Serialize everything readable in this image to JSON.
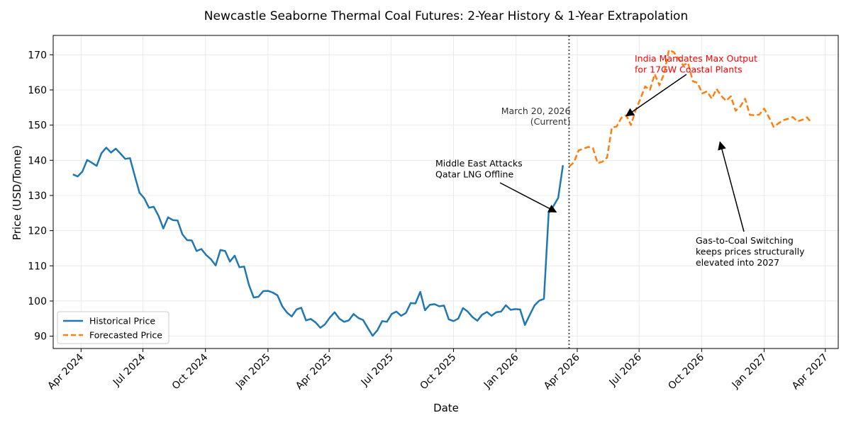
{
  "chart_data": {
    "type": "line",
    "title": "Newcastle Seaborne Thermal Coal Futures: 2-Year History & 1-Year Extrapolation",
    "xlabel": "Date",
    "ylabel": "Price (USD/Tonne)",
    "ylim": [
      86.5,
      175.5
    ],
    "y_ticks": [
      90,
      100,
      110,
      120,
      130,
      140,
      150,
      160,
      170
    ],
    "x_range": [
      "2024-02-20",
      "2027-04-20"
    ],
    "x_ticks": [
      {
        "date": "2024-04-01",
        "label": "Apr 2024"
      },
      {
        "date": "2024-07-01",
        "label": "Jul 2024"
      },
      {
        "date": "2024-10-01",
        "label": "Oct 2024"
      },
      {
        "date": "2025-01-01",
        "label": "Jan 2025"
      },
      {
        "date": "2025-04-01",
        "label": "Apr 2025"
      },
      {
        "date": "2025-07-01",
        "label": "Jul 2025"
      },
      {
        "date": "2025-10-01",
        "label": "Oct 2025"
      },
      {
        "date": "2026-01-01",
        "label": "Jan 2026"
      },
      {
        "date": "2026-04-01",
        "label": "Apr 2026"
      },
      {
        "date": "2026-07-01",
        "label": "Jul 2026"
      },
      {
        "date": "2026-10-01",
        "label": "Oct 2026"
      },
      {
        "date": "2027-01-01",
        "label": "Jan 2027"
      },
      {
        "date": "2027-04-01",
        "label": "Apr 2027"
      }
    ],
    "grid": true,
    "legend_position": "lower-left",
    "series": [
      {
        "name": "Historical Price",
        "color": "#1f77b4",
        "style": "solid",
        "start_date": "2024-03-20",
        "step_days": 7,
        "values": [
          136.0,
          135.4,
          136.8,
          140.1,
          139.3,
          138.4,
          142.0,
          143.6,
          142.2,
          143.3,
          141.9,
          140.4,
          140.6,
          135.6,
          130.8,
          129.2,
          126.5,
          126.8,
          124.2,
          120.6,
          123.8,
          123.0,
          122.9,
          119.0,
          117.3,
          117.2,
          114.2,
          114.8,
          113.1,
          111.9,
          110.1,
          114.5,
          114.2,
          111.2,
          112.9,
          109.6,
          109.8,
          104.6,
          101.0,
          101.2,
          102.8,
          102.9,
          102.4,
          101.6,
          98.5,
          96.7,
          95.6,
          97.6,
          98.1,
          94.5,
          94.9,
          93.9,
          92.4,
          93.4,
          95.3,
          96.8,
          95.0,
          94.1,
          94.5,
          96.3,
          95.2,
          94.6,
          92.3,
          90.1,
          91.7,
          94.3,
          94.1,
          96.3,
          97.0,
          95.8,
          96.6,
          99.4,
          99.3,
          102.6,
          97.4,
          98.9,
          99.1,
          98.5,
          98.7,
          94.8,
          94.3,
          95.0,
          98.0,
          97.0,
          95.4,
          94.4,
          96.1,
          96.9,
          95.8,
          96.8,
          97.0,
          98.8,
          97.5,
          97.7,
          97.6,
          93.2,
          96.0,
          98.7,
          100.1,
          100.6,
          125.0,
          127.0,
          129.3,
          138.6
        ]
      },
      {
        "name": "Forecasted Price",
        "color": "#ff7f0e",
        "style": "dashed",
        "start_date": "2026-03-20",
        "step_days": 7,
        "values": [
          138.2,
          139.4,
          142.8,
          143.3,
          143.8,
          143.5,
          139.2,
          139.6,
          140.8,
          149.3,
          149.6,
          152.1,
          152.8,
          150.0,
          154.3,
          157.5,
          161.0,
          160.0,
          164.5,
          161.3,
          164.7,
          171.4,
          170.7,
          168.9,
          167.0,
          167.7,
          162.5,
          162.0,
          159.0,
          159.6,
          157.5,
          160.3,
          158.3,
          156.9,
          158.2,
          154.1,
          155.3,
          157.5,
          152.9,
          152.8,
          153.0,
          154.7,
          152.3,
          149.5,
          150.5,
          151.4,
          151.8,
          152.3,
          151.1,
          151.5,
          152.2,
          150.6
        ]
      }
    ],
    "vertical_marker": {
      "date": "2026-03-20",
      "label_line1": "March 20, 2026",
      "label_line2": "(Current)"
    },
    "annotations": [
      {
        "lines": [
          "Middle East Attacks",
          "Qatar LNG Offline"
        ],
        "color": "#000000",
        "arrow_to_date": "2026-03-01",
        "arrow_to_value": 125.3
      },
      {
        "lines": [
          "India Mandates Max Output",
          "for 17GW Coastal Plants"
        ],
        "color": "#ff0000",
        "arrow_to_date": "2026-06-12",
        "arrow_to_value": 152.6
      },
      {
        "lines": [
          "Gas-to-Coal Switching",
          "keeps prices structurally",
          "elevated into 2027"
        ],
        "color": "#000000",
        "arrow_to_date": "2026-10-28",
        "arrow_to_value": 145.2
      }
    ]
  }
}
